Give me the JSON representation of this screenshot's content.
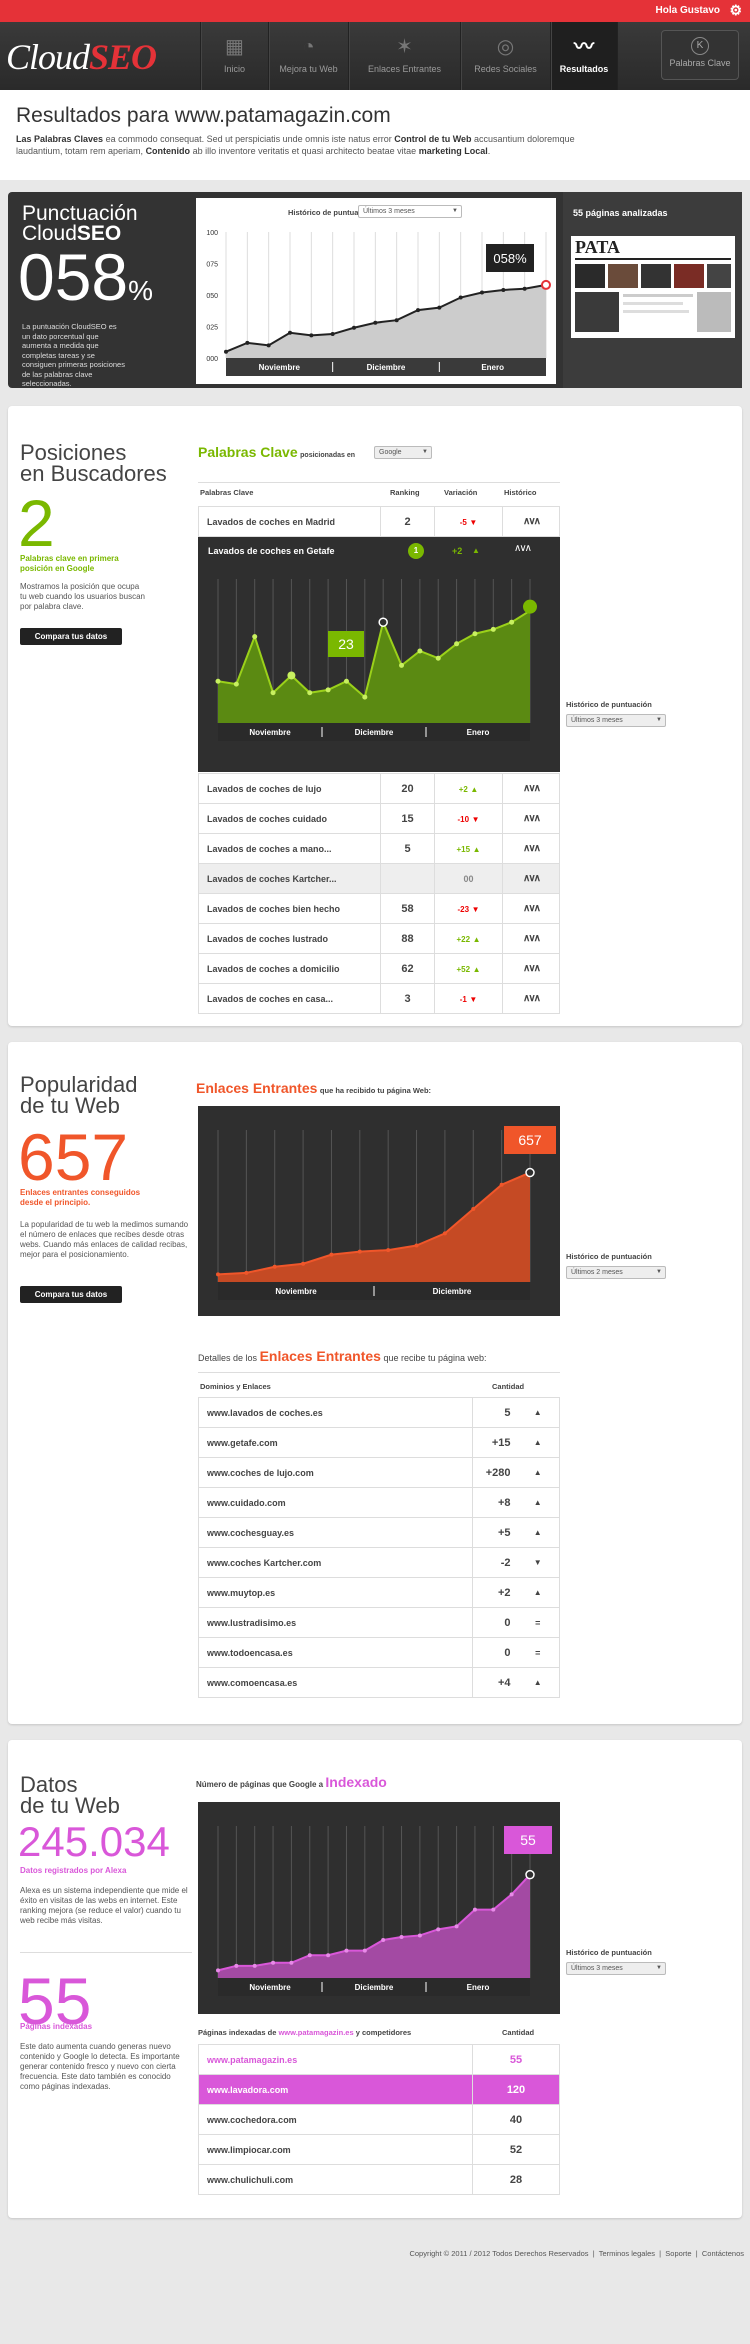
{
  "topbar": {
    "greeting": "Hola Gustavo",
    "settings_icon": "gear-icon"
  },
  "logo": {
    "cloud": "Cloud",
    "seo": "SEO"
  },
  "nav": {
    "items": [
      {
        "label": "Inicio",
        "icon": "grid-icon",
        "glyph": "▦"
      },
      {
        "label": "Mejora tu Web",
        "icon": "speedometer-icon",
        "glyph": "◔"
      },
      {
        "label": "Enlaces Entrantes",
        "icon": "star-icon",
        "glyph": "✶"
      },
      {
        "label": "Redes Sociales",
        "icon": "chat-bubble-icon",
        "glyph": "◎"
      },
      {
        "label": "Resultados",
        "icon": "pulse-icon",
        "glyph": "〰"
      }
    ],
    "keyword_button": {
      "label": "Palabras Clave",
      "badge": "K"
    }
  },
  "header": {
    "title": "Resultados para www.patamagazin.com",
    "description_parts": [
      "Las Palabras Claves",
      " ea commodo consequat. Sed ut perspiciatis unde omnis iste natus error ",
      "Control de tu Web",
      " accusantium doloremque laudantium, totam rem aperiam, ",
      "Contenido",
      " ab illo inventore veritatis et quasi architecto beatae vitae ",
      "marketing Local",
      "."
    ]
  },
  "score": {
    "title_line1": "Punctuación",
    "title_line2a": "Cloud",
    "title_line2b": "SEO",
    "value": "058",
    "unit": "%",
    "description": "La puntuación CloudSEO es un dato porcentual que aumenta a medida que completas tareas y se consiguen primeras posiciones de las palabras clave seleccionadas.",
    "history_label": "Histórico de puntuación",
    "history_select": "Últimos 3 meses",
    "callout": "058%",
    "pages_title": "55 páginas analizadas",
    "thumb_brand": "PATA"
  },
  "score_chart": {
    "type": "area",
    "y_ticks": [
      "100",
      "075",
      "050",
      "025",
      "000"
    ],
    "ylim": [
      0,
      100
    ],
    "months": [
      "Noviembre",
      "Diciembre",
      "Enero"
    ],
    "values": [
      5,
      12,
      10,
      20,
      18,
      19,
      24,
      28,
      30,
      38,
      40,
      48,
      52,
      54,
      55,
      58
    ]
  },
  "positions": {
    "title_line1": "Posiciones",
    "title_line2": "en Buscadores",
    "count": "2",
    "sub": "Palabras clave en primera posición en Google",
    "description": "Mostramos la posición que ocupa tu web cuando los usuarios buscan por palabra clave.",
    "button": "Compara tus datos",
    "section_title": "Palabras Clave",
    "section_subtitle": "posicionadas en",
    "engine_select": "Google",
    "headers": [
      "Palabras Clave",
      "Ranking",
      "Variación",
      "Histórico"
    ],
    "history_label": "Histórico de puntuación",
    "history_select": "Últimos 3 meses"
  },
  "keywords_top": [
    {
      "name": "Lavados de coches en Madrid",
      "rank": "2",
      "var": "-5",
      "dir": "dn"
    }
  ],
  "keyword_expanded": {
    "name": "Lavados de coches en Getafe",
    "var": "+2",
    "callout": "23"
  },
  "keywords": [
    {
      "name": "Lavados de coches de lujo",
      "rank": "20",
      "var": "+2",
      "dir": "up"
    },
    {
      "name": "Lavados de coches cuidado",
      "rank": "15",
      "var": "-10",
      "dir": "dn"
    },
    {
      "name": "Lavados de coches a mano...",
      "rank": "5",
      "var": "+15",
      "dir": "up"
    },
    {
      "name": "Lavados de coches Kartcher...",
      "rank": "",
      "var": "00",
      "dir": "eq"
    },
    {
      "name": "Lavados de coches bien hecho",
      "rank": "58",
      "var": "-23",
      "dir": "dn"
    },
    {
      "name": "Lavados de coches lustrado",
      "rank": "88",
      "var": "+22",
      "dir": "up"
    },
    {
      "name": "Lavados de coches a domicilio",
      "rank": "62",
      "var": "+52",
      "dir": "up"
    },
    {
      "name": "Lavados de coches en casa...",
      "rank": "3",
      "var": "-1",
      "dir": "dn"
    }
  ],
  "keyword_chart": {
    "type": "area",
    "months": [
      "Noviembre",
      "Diciembre",
      "Enero"
    ],
    "values": [
      29,
      27,
      60,
      21,
      33,
      21,
      23,
      29,
      18,
      70,
      40,
      50,
      45,
      55,
      62,
      65,
      70,
      78
    ]
  },
  "popularity": {
    "title_line1": "Popularidad",
    "title_line2": "de tu Web",
    "count": "657",
    "sub": "Enlaces entrantes conseguidos desde el principio.",
    "description": "La popularidad de tu web la medimos sumando el número de enlaces que recibes desde otras webs. Cuando más enlaces de calidad recibas, mejor para el posicionamiento.",
    "button": "Compara tus datos",
    "section_title": "Enlaces Entrantes",
    "section_subtitle": "que ha recibido tu página Web:",
    "callout": "657",
    "history_label": "Histórico de puntuación",
    "history_select": "Últimos 2 meses",
    "details_pre": "Detalles de los",
    "details_acc": "Enlaces Entrantes",
    "details_post": "que recibe tu página web:",
    "headers": [
      "Dominios y Enlaces",
      "Cantidad"
    ]
  },
  "links_chart": {
    "type": "area",
    "months": [
      "Noviembre",
      "Diciembre"
    ],
    "values": [
      5,
      6,
      10,
      12,
      18,
      20,
      21,
      24,
      32,
      48,
      64,
      72
    ]
  },
  "links": [
    {
      "domain": "www.lavados de coches.es",
      "qty": "5",
      "dir": "up"
    },
    {
      "domain": "www.getafe.com",
      "qty": "+15",
      "dir": "up"
    },
    {
      "domain": "www.coches de lujo.com",
      "qty": "+280",
      "dir": "up"
    },
    {
      "domain": "www.cuidado.com",
      "qty": "+8",
      "dir": "up"
    },
    {
      "domain": "www.cochesguay.es",
      "qty": "+5",
      "dir": "up"
    },
    {
      "domain": "www.coches Kartcher.com",
      "qty": "-2",
      "dir": "dn"
    },
    {
      "domain": "www.muytop.es",
      "qty": "+2",
      "dir": "up"
    },
    {
      "domain": "www.lustradisimo.es",
      "qty": "0",
      "dir": "eq"
    },
    {
      "domain": "www.todoencasa.es",
      "qty": "0",
      "dir": "eq"
    },
    {
      "domain": "www.comoencasa.es",
      "qty": "+4",
      "dir": "up"
    }
  ],
  "data": {
    "title_line1": "Datos",
    "title_line2": "de tu Web",
    "alexa": "245.034",
    "alexa_sub": "Datos registrados por Alexa",
    "alexa_desc": "Alexa es un sistema independiente que mide el éxito en visitas de las webs en internet. Este ranking mejora (se reduce el valor) cuando tu web recibe más visitas.",
    "pages": "55",
    "pages_sub": "Páginas indexadas",
    "pages_desc": "Este dato aumenta cuando generas nuevo contenido y Google lo detecta. Es importante generar contenido fresco y nuevo con cierta frecuencia. Este dato también es conocido como páginas indexadas.",
    "section_title": "Número de páginas que Google a",
    "section_acc": "Indexado",
    "callout": "55",
    "history_label": "Histórico de puntuación",
    "history_select": "Últimos 3 meses",
    "table_pre": "Páginas indexadas de",
    "table_acc": "www.patamagazin.es",
    "table_post": "y competidores",
    "qty_header": "Cantidad"
  },
  "index_chart": {
    "type": "area",
    "months": [
      "Noviembre",
      "Diciembre",
      "Enero"
    ],
    "values": [
      5,
      8,
      8,
      10,
      10,
      15,
      15,
      18,
      18,
      25,
      27,
      28,
      32,
      34,
      45,
      45,
      55,
      68
    ]
  },
  "competitors": [
    {
      "domain": "www.patamagazin.es",
      "qty": "55",
      "style": "own"
    },
    {
      "domain": "www.lavadora.com",
      "qty": "120",
      "style": "hl"
    },
    {
      "domain": "www.cochedora.com",
      "qty": "40",
      "style": ""
    },
    {
      "domain": "www.limpiocar.com",
      "qty": "52",
      "style": ""
    },
    {
      "domain": "www.chulichuli.com",
      "qty": "28",
      "style": ""
    }
  ],
  "footer": {
    "copyright": "Copyright © 2011 / 2012 Todos Derechos Reservados",
    "links": [
      "Terminos legales",
      "Soporte",
      "Contáctenos"
    ]
  },
  "colors": {
    "red": "#e53238",
    "green": "#7ab800",
    "orange": "#f0562a",
    "magenta": "#d957d9"
  }
}
